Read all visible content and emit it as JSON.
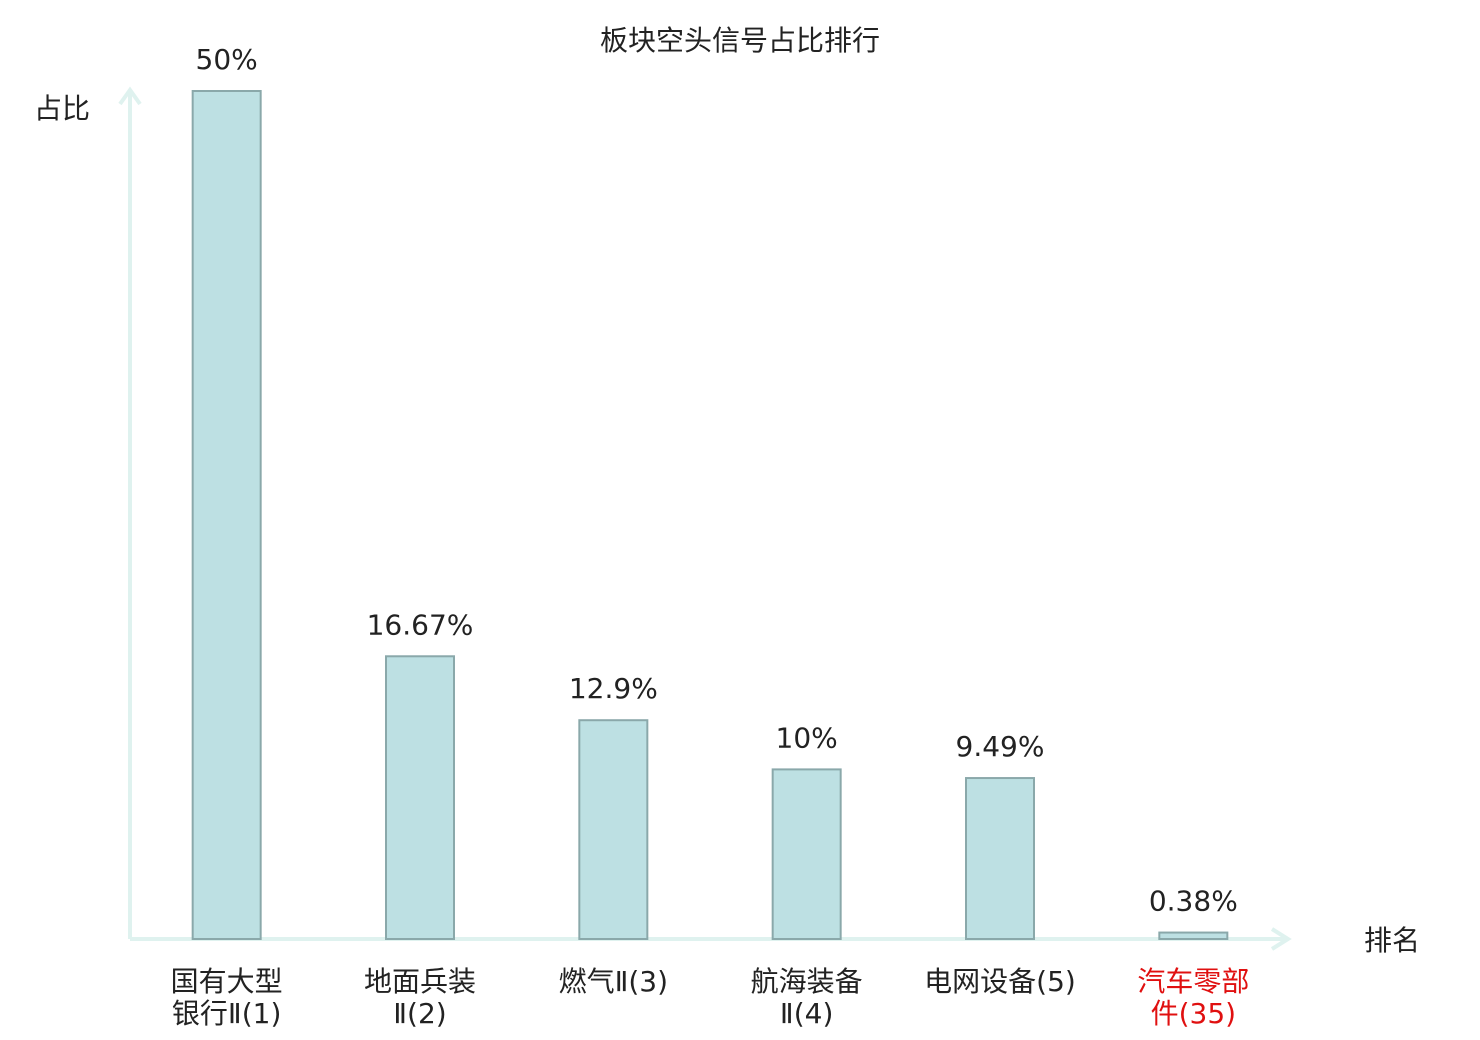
{
  "chart_data": {
    "type": "bar",
    "title": "板块空头信号占比排行",
    "y_axis_label": "占比",
    "x_axis_label": "排名",
    "categories": [
      "国有大型银行Ⅱ(1)",
      "地面兵装Ⅱ(2)",
      "燃气Ⅱ(3)",
      "航海装备Ⅱ(4)",
      "电网设备(5)",
      "汽车零部件(35)"
    ],
    "values": [
      50,
      16.67,
      12.9,
      10,
      9.49,
      0.38
    ],
    "value_labels": [
      "50%",
      "16.67%",
      "12.9%",
      "10%",
      "9.49%",
      "0.38%"
    ],
    "color": "#bde0e3",
    "edge_color": "#8aa8aa",
    "highlight_index": 5,
    "highlight_color": "#e01010",
    "ylim": [
      0,
      50
    ]
  }
}
